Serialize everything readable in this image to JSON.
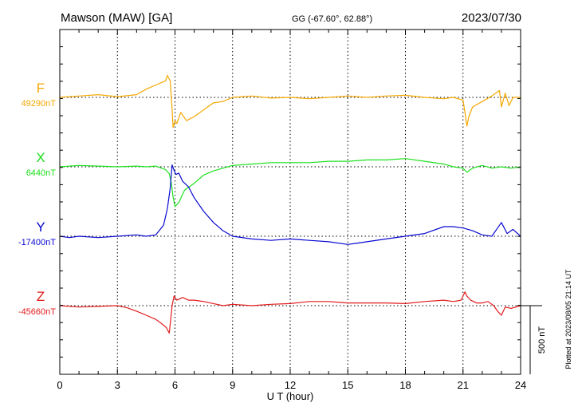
{
  "header": {
    "station": "Mawson (MAW)  [GA]",
    "coords": "GG (-67.60°,  62.88°)",
    "date": "2023/07/30"
  },
  "footer": {
    "plotted_note": "Plotted at 2023/08/05 21:14 UT",
    "scale_label": "500 nT"
  },
  "colors": {
    "F": "#f5a800",
    "X": "#1ee01e",
    "Y": "#0a0ad2",
    "Z": "#e21b1b",
    "axis": "#000000",
    "grid": "#000000"
  },
  "chart_data": {
    "type": "line",
    "title": "Mawson (MAW)  [GA]",
    "xlabel": "U T (hour)",
    "ylabel": "",
    "xlim": [
      0,
      24
    ],
    "x_ticks": [
      0,
      3,
      6,
      9,
      12,
      15,
      18,
      21,
      24
    ],
    "grid": true,
    "scale_bar_nT": 500,
    "series": [
      {
        "name": "F",
        "baseline_label": "49290nT",
        "baseline_nT": 49290,
        "x": [
          0,
          1,
          2,
          3,
          4,
          4.5,
          5,
          5.5,
          5.6,
          5.75,
          5.85,
          5.9,
          6.0,
          6.1,
          6.3,
          6.6,
          7,
          7.5,
          8,
          8.5,
          9,
          10,
          11,
          12,
          13,
          14,
          15,
          16,
          17,
          18,
          19,
          20,
          20.5,
          21,
          21.1,
          21.2,
          21.3,
          21.5,
          22,
          22.5,
          22.9,
          23,
          23.2,
          23.4,
          23.6,
          24
        ],
        "values": [
          49290,
          49300,
          49310,
          49295,
          49310,
          49350,
          49380,
          49410,
          49450,
          49410,
          49200,
          49070,
          49120,
          49100,
          49180,
          49120,
          49150,
          49200,
          49250,
          49260,
          49290,
          49300,
          49285,
          49290,
          49280,
          49290,
          49300,
          49290,
          49300,
          49305,
          49290,
          49280,
          49290,
          49270,
          49180,
          49080,
          49150,
          49220,
          49260,
          49300,
          49340,
          49220,
          49320,
          49230,
          49290,
          49290
        ]
      },
      {
        "name": "X",
        "baseline_label": "6440nT",
        "baseline_nT": 6440,
        "x": [
          0,
          1,
          2,
          3,
          4,
          4.5,
          5,
          5.5,
          5.7,
          5.8,
          5.9,
          6.0,
          6.2,
          6.5,
          7,
          7.5,
          8,
          8.5,
          9,
          10,
          11,
          12,
          13,
          14,
          15,
          16,
          17,
          18,
          19,
          20,
          20.5,
          21,
          21.2,
          21.5,
          22,
          22.5,
          23,
          23.5,
          24
        ],
        "values": [
          6440,
          6450,
          6445,
          6440,
          6445,
          6440,
          6445,
          6420,
          6390,
          6330,
          6220,
          6150,
          6180,
          6270,
          6320,
          6380,
          6410,
          6430,
          6450,
          6460,
          6470,
          6470,
          6470,
          6480,
          6480,
          6490,
          6490,
          6500,
          6480,
          6460,
          6440,
          6430,
          6400,
          6430,
          6450,
          6430,
          6440,
          6430,
          6440
        ]
      },
      {
        "name": "Y",
        "baseline_label": "-17400nT",
        "baseline_nT": -17400,
        "x": [
          0,
          0.5,
          1,
          2,
          3,
          4,
          4.5,
          5,
          5.4,
          5.6,
          5.75,
          5.85,
          5.95,
          6.05,
          6.2,
          6.4,
          6.7,
          7,
          7.5,
          8,
          8.5,
          9,
          10,
          11,
          12,
          13,
          14,
          15,
          15.5,
          16,
          17,
          18,
          19,
          20,
          20.5,
          21,
          21.5,
          22,
          22.5,
          22.8,
          23,
          23.3,
          23.6,
          24
        ],
        "values": [
          -17400,
          -17410,
          -17400,
          -17410,
          -17400,
          -17390,
          -17400,
          -17390,
          -17320,
          -17200,
          -17050,
          -16880,
          -16920,
          -16950,
          -16940,
          -17000,
          -17040,
          -17120,
          -17220,
          -17300,
          -17360,
          -17400,
          -17420,
          -17430,
          -17420,
          -17430,
          -17440,
          -17460,
          -17450,
          -17440,
          -17420,
          -17400,
          -17380,
          -17330,
          -17330,
          -17340,
          -17360,
          -17390,
          -17400,
          -17340,
          -17300,
          -17380,
          -17350,
          -17400
        ]
      },
      {
        "name": "Z",
        "baseline_label": "-45660nT",
        "baseline_nT": -45660,
        "x": [
          0,
          1,
          2,
          3,
          3.5,
          4,
          4.5,
          5,
          5.3,
          5.55,
          5.7,
          5.85,
          5.95,
          6.1,
          6.4,
          6.7,
          7,
          7.5,
          8,
          8.5,
          9,
          10,
          11,
          12,
          13,
          14,
          15,
          16,
          17,
          18,
          19,
          20,
          20.5,
          20.9,
          21.1,
          21.2,
          21.4,
          21.7,
          22,
          22.3,
          22.6,
          22.8,
          23,
          23.2,
          23.5,
          24
        ],
        "values": [
          -45660,
          -45670,
          -45665,
          -45660,
          -45675,
          -45700,
          -45730,
          -45760,
          -45790,
          -45820,
          -45860,
          -45660,
          -45590,
          -45620,
          -45600,
          -45620,
          -45620,
          -45630,
          -45645,
          -45660,
          -45650,
          -45660,
          -45650,
          -45645,
          -45630,
          -45630,
          -45640,
          -45640,
          -45640,
          -45645,
          -45630,
          -45620,
          -45630,
          -45620,
          -45560,
          -45590,
          -45620,
          -45640,
          -45640,
          -45630,
          -45660,
          -45700,
          -45730,
          -45670,
          -45680,
          -45660
        ]
      }
    ]
  }
}
